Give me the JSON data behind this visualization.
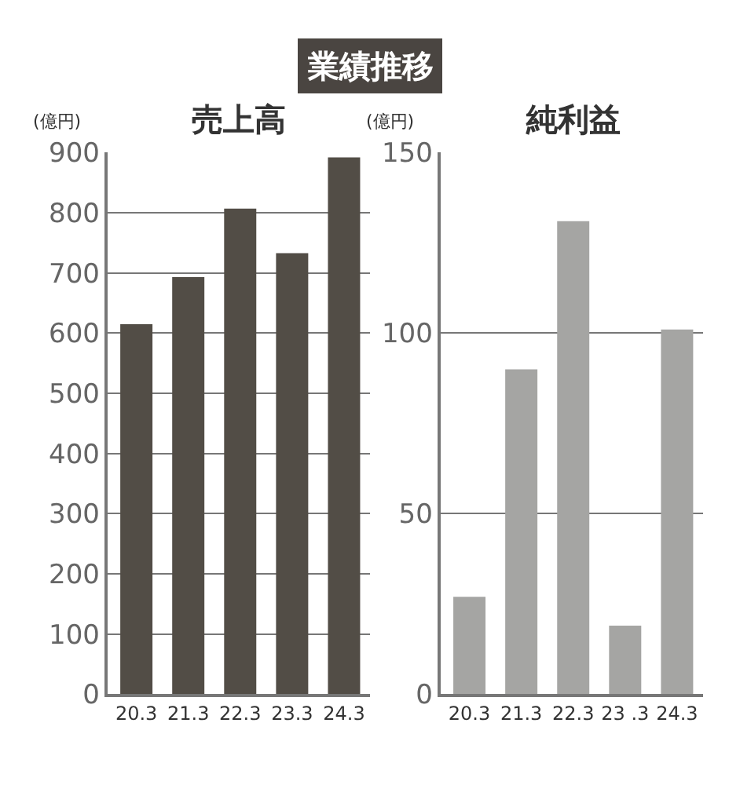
{
  "chart_data": [
    {
      "type": "bar",
      "title": "売上高",
      "ylabel": "(億円)",
      "annotations": [
        "業績推移"
      ],
      "categories": [
        "20.3",
        "21.3",
        "22.3",
        "23.3",
        "24.3"
      ],
      "values": [
        615,
        693,
        807,
        733,
        892
      ],
      "color": "#524d46",
      "ylim": [
        0,
        900
      ],
      "yticks": [
        0,
        100,
        200,
        300,
        400,
        500,
        600,
        700,
        800,
        900
      ],
      "grid": "y"
    },
    {
      "type": "bar",
      "title": "純利益",
      "ylabel": "(億円)",
      "categories": [
        "20.3",
        "21.3",
        "22.3",
        "23 .3",
        "24.3"
      ],
      "values": [
        27,
        90,
        131,
        19,
        101
      ],
      "color": "#a5a5a3",
      "ylim": [
        0,
        150
      ],
      "yticks": [
        0,
        50,
        100,
        150
      ],
      "grid": "y"
    }
  ]
}
